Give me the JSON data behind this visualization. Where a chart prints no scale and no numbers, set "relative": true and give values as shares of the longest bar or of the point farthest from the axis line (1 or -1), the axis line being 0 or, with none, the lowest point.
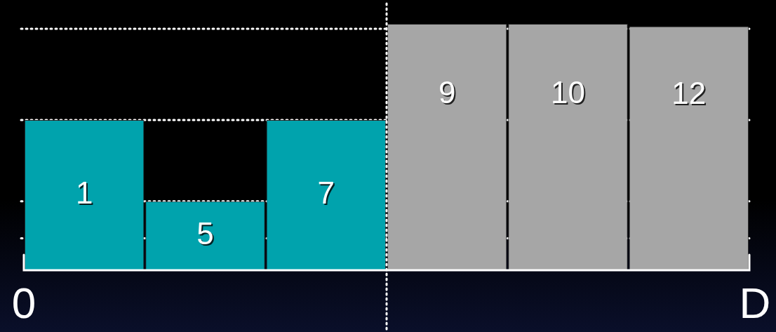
{
  "chart_data": {
    "type": "bar",
    "relative": true,
    "categories": [
      "1",
      "5",
      "7",
      "9",
      "10",
      "12"
    ],
    "values": [
      0.61,
      0.28,
      0.61,
      1,
      1,
      0.99
    ],
    "colors": [
      "#00a3ad",
      "#00a3ad",
      "#00a3ad",
      "#a6a6a6",
      "#a6a6a6",
      "#a6a6a6"
    ],
    "ref_lines": [
      {
        "axis": "y",
        "value": 0.98,
        "line_style": "dotted",
        "color": "#ffffff"
      },
      {
        "axis": "y",
        "value": 0.61,
        "line_style": "dotted",
        "color": "#ffffff"
      },
      {
        "axis": "y",
        "value": 0.28,
        "line_style": "dotted",
        "color": "#ffffff"
      },
      {
        "axis": "y",
        "value": 0.13,
        "line_style": "dotted",
        "color": "#ffffff"
      }
    ],
    "annotations": [
      "0",
      "D"
    ]
  }
}
